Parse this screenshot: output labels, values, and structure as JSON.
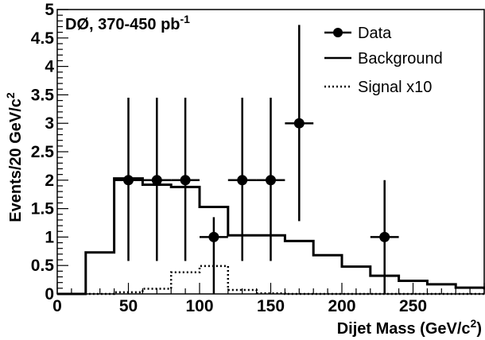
{
  "chart_data": {
    "type": "line",
    "annotation": {
      "text": "DØ, 370-450 pb",
      "superscript": "-1"
    },
    "xlabel": {
      "text": "Dijet Mass (GeV/c",
      "superscript": "2",
      "suffix": ")"
    },
    "ylabel": {
      "text": "Events/20 GeV/c",
      "superscript": "2"
    },
    "xlim": [
      0,
      300
    ],
    "ylim": [
      0,
      5
    ],
    "x_tick_labels": [
      "0",
      "50",
      "100",
      "150",
      "200",
      "250"
    ],
    "x_ticks": [
      0,
      50,
      100,
      150,
      200,
      250
    ],
    "y_tick_labels": [
      "0",
      "0.5",
      "1",
      "1.5",
      "2",
      "2.5",
      "3",
      "3.5",
      "4",
      "4.5",
      "5"
    ],
    "y_ticks": [
      0,
      0.5,
      1,
      1.5,
      2,
      2.5,
      3,
      3.5,
      4,
      4.5,
      5
    ],
    "grid": false,
    "legend_position": "top-right",
    "legend": [
      {
        "label": "Data",
        "style": "marker-line"
      },
      {
        "label": "Background",
        "style": "solid"
      },
      {
        "label": "Signal x10",
        "style": "dotted"
      }
    ],
    "series": [
      {
        "name": "Data",
        "kind": "points-with-errors",
        "x": [
          50,
          70,
          90,
          110,
          130,
          150,
          170,
          230
        ],
        "y": [
          2,
          2,
          2,
          1,
          2,
          2,
          3,
          1
        ],
        "x_err": 10,
        "y_err_low": [
          1.42,
          1.42,
          1.42,
          1.0,
          1.42,
          1.42,
          1.72,
          1.0
        ],
        "y_err_high": [
          1.45,
          1.45,
          1.45,
          0.35,
          1.45,
          1.45,
          1.73,
          1.0
        ]
      },
      {
        "name": "Background",
        "kind": "step",
        "bin_edges": [
          0,
          20,
          40,
          60,
          80,
          100,
          120,
          140,
          160,
          180,
          200,
          220,
          240,
          260,
          280,
          300
        ],
        "values": [
          0,
          0.73,
          2.03,
          1.92,
          1.88,
          1.53,
          1.03,
          1.03,
          0.93,
          0.68,
          0.48,
          0.32,
          0.23,
          0.17,
          0.11,
          0.08
        ]
      },
      {
        "name": "Signal x10",
        "kind": "step",
        "bin_edges": [
          0,
          20,
          40,
          60,
          80,
          100,
          120,
          140,
          160,
          180,
          200,
          220,
          240,
          260,
          280,
          300
        ],
        "values": [
          0,
          0,
          0.03,
          0.09,
          0.38,
          0.49,
          0.07,
          0.01,
          0,
          0,
          0,
          0,
          0,
          0,
          0,
          0
        ]
      }
    ]
  }
}
